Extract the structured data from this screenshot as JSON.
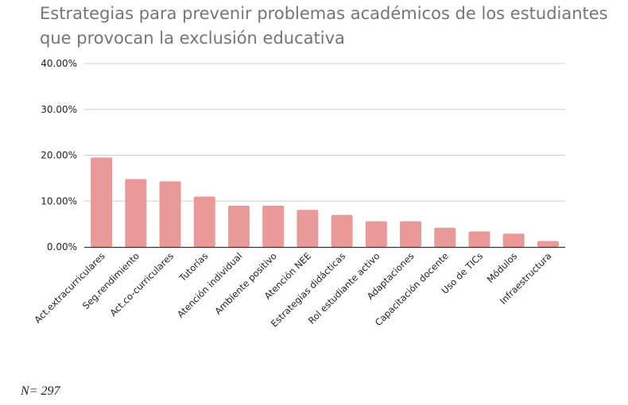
{
  "chart_data": {
    "type": "bar",
    "title_lines": [
      "Estrategias para prevenir problemas académicos de los estudiantes",
      "que provocan la exclusión educativa"
    ],
    "categories": [
      "Act.extracurriculares",
      "Seg.rendimiento",
      "Act.co-curriculares",
      "Tutorías",
      "Atención individual",
      "Ambiente positivo",
      "Atención NEE",
      "Estrategias didácticas",
      "Rol estudiante activo",
      "Adaptaciones",
      "Capacitación docente",
      "Uso de TICs",
      "Módulos",
      "Infraestructura"
    ],
    "values": [
      19.5,
      14.8,
      14.3,
      11.0,
      9.0,
      9.0,
      8.1,
      7.0,
      5.6,
      5.6,
      4.2,
      3.4,
      2.9,
      1.3
    ],
    "unit": "%",
    "ylim": [
      0,
      40
    ],
    "y_ticks": [
      "0.00%",
      "10.00%",
      "20.00%",
      "30.00%",
      "40.00%"
    ],
    "y_tick_values": [
      0,
      10,
      20,
      30,
      40
    ],
    "grid": true,
    "bar_color": "#ea9999"
  },
  "note": {
    "label": "N=",
    "value": "297"
  }
}
